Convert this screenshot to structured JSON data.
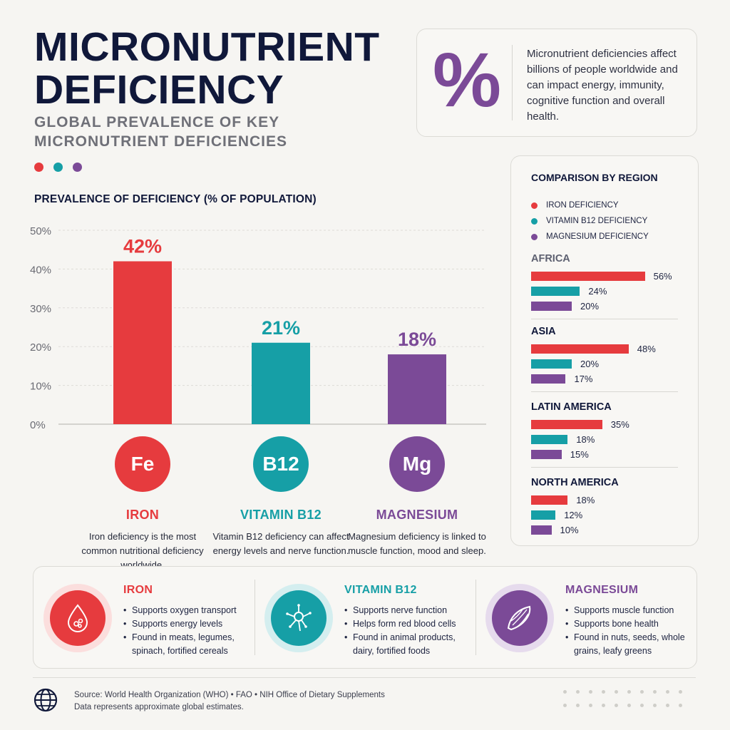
{
  "header": {
    "title_line1": "MICRONUTRIENT",
    "title_line2": "DEFICIENCY",
    "subtitle_line1": "GLOBAL PREVALENCE OF KEY",
    "subtitle_line2": "MICRONUTRIENT DEFICIENCIES",
    "dot_colors": [
      "#e63b3e",
      "#169fa6",
      "#7b4a97"
    ]
  },
  "intro": {
    "icon": "percent-icon",
    "icon_glyph": "%",
    "text": "Micronutrient deficiencies affect billions of people worldwide and can impact energy, immunity, cognitive function and overall health."
  },
  "chart_title": "PREVALENCE OF DEFICIENCY (% OF POPULATION)",
  "chart_data": [
    {
      "type": "bar",
      "title": "PREVALENCE OF DEFICIENCY (% OF POPULATION)",
      "categories": [
        "IRON",
        "VITAMIN B12",
        "MAGNESIUM"
      ],
      "values": [
        42,
        21,
        18
      ],
      "value_labels": [
        "42%",
        "21%",
        "18%"
      ],
      "colors": [
        "#e63b3e",
        "#169fa6",
        "#7b4a97"
      ],
      "ylim": [
        0,
        50
      ],
      "yticks": [
        0,
        10,
        20,
        30,
        40,
        50
      ],
      "ytick_labels": [
        "0%",
        "10%",
        "20%",
        "30%",
        "40%",
        "50%"
      ],
      "grid": true
    },
    {
      "type": "bar",
      "orientation": "horizontal",
      "title": "COMPARISON BY REGION",
      "categories": [
        "AFRICA",
        "ASIA",
        "LATIN AMERICA",
        "NORTH AMERICA"
      ],
      "series": [
        {
          "name": "IRON DEFICIENCY",
          "color": "#e63b3e",
          "values": [
            56,
            48,
            35,
            18
          ]
        },
        {
          "name": "VITAMIN B12 DEFICIENCY",
          "color": "#169fa6",
          "values": [
            24,
            20,
            18,
            12
          ]
        },
        {
          "name": "MAGNESIUM DEFICIENCY",
          "color": "#7b4a97",
          "values": [
            20,
            17,
            15,
            10
          ]
        }
      ],
      "value_labels": [
        [
          "56%",
          "24%",
          "20%"
        ],
        [
          "48%",
          "20%",
          "17%"
        ],
        [
          "35%",
          "18%",
          "15%"
        ],
        [
          "18%",
          "12%",
          "10%"
        ]
      ],
      "legend": "top"
    }
  ],
  "nutrients": [
    {
      "symbol": "Fe",
      "name": "IRON",
      "color": "#e63b3e",
      "description": "Iron deficiency is the most common nutritional deficiency worldwide."
    },
    {
      "symbol": "B12",
      "name": "VITAMIN B12",
      "color": "#169fa6",
      "description": "Vitamin B12 deficiency can affect energy levels and nerve function."
    },
    {
      "symbol": "Mg",
      "name": "MAGNESIUM",
      "color": "#7b4a97",
      "description": "Magnesium deficiency is linked to muscle function, mood and sleep."
    }
  ],
  "benefits": [
    {
      "title": "IRON",
      "icon": "blood-drop-icon",
      "color": "#e63b3e",
      "items": [
        "Supports oxygen transport",
        "Supports energy levels",
        "Found in meats, legumes, spinach, fortified cereals"
      ]
    },
    {
      "title": "VITAMIN B12",
      "icon": "neuron-icon",
      "color": "#169fa6",
      "items": [
        "Supports nerve function",
        "Helps form red blood cells",
        "Found in animal products, dairy, fortified foods"
      ]
    },
    {
      "title": "MAGNESIUM",
      "icon": "muscle-icon",
      "color": "#7b4a97",
      "items": [
        "Supports muscle function",
        "Supports bone health",
        "Found in nuts, seeds, whole grains, leafy greens"
      ]
    }
  ],
  "footer": {
    "icon": "globe-icon",
    "source_line1": "Source: World Health Organization (WHO) • FAO • NIH Office of Dietary Supplements",
    "source_line2": "Data represents approximate global estimates."
  }
}
